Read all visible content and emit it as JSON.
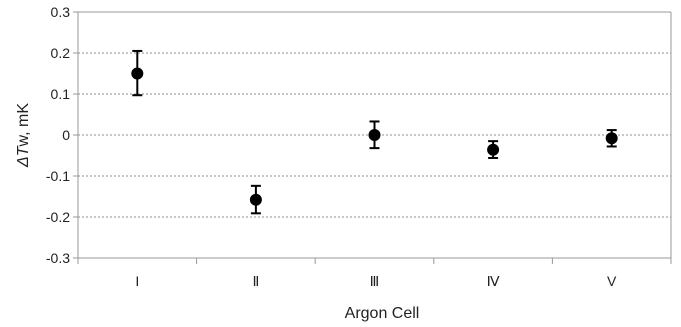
{
  "chart_data": {
    "type": "scatter",
    "title": "",
    "xlabel": "Argon Cell",
    "ylabel": {
      "symbol": "ΔT",
      "rest": "w, mK"
    },
    "categories": [
      "I",
      "Ⅱ",
      "Ⅲ",
      "Ⅳ",
      "V"
    ],
    "ylim": [
      -0.3,
      0.3
    ],
    "yticks": [
      "0.3",
      "0.2",
      "0.1",
      "0",
      "-0.1",
      "-0.2",
      "-0.3"
    ],
    "ytick_values": [
      0.3,
      0.2,
      0.1,
      0,
      -0.1,
      -0.2,
      -0.3
    ],
    "grid": "horizontal dotted",
    "series": [
      {
        "values": [
          0.15,
          -0.158,
          0.0,
          -0.036,
          -0.008
        ],
        "err_upper": [
          0.205,
          -0.124,
          0.033,
          -0.015,
          0.012
        ],
        "err_lower": [
          0.097,
          -0.191,
          -0.032,
          -0.056,
          -0.028
        ],
        "color": "#000000"
      }
    ],
    "colors": {
      "axis": "#999999",
      "grid": "#8c8c8c",
      "marker": "#000000",
      "text": "#222222"
    }
  }
}
